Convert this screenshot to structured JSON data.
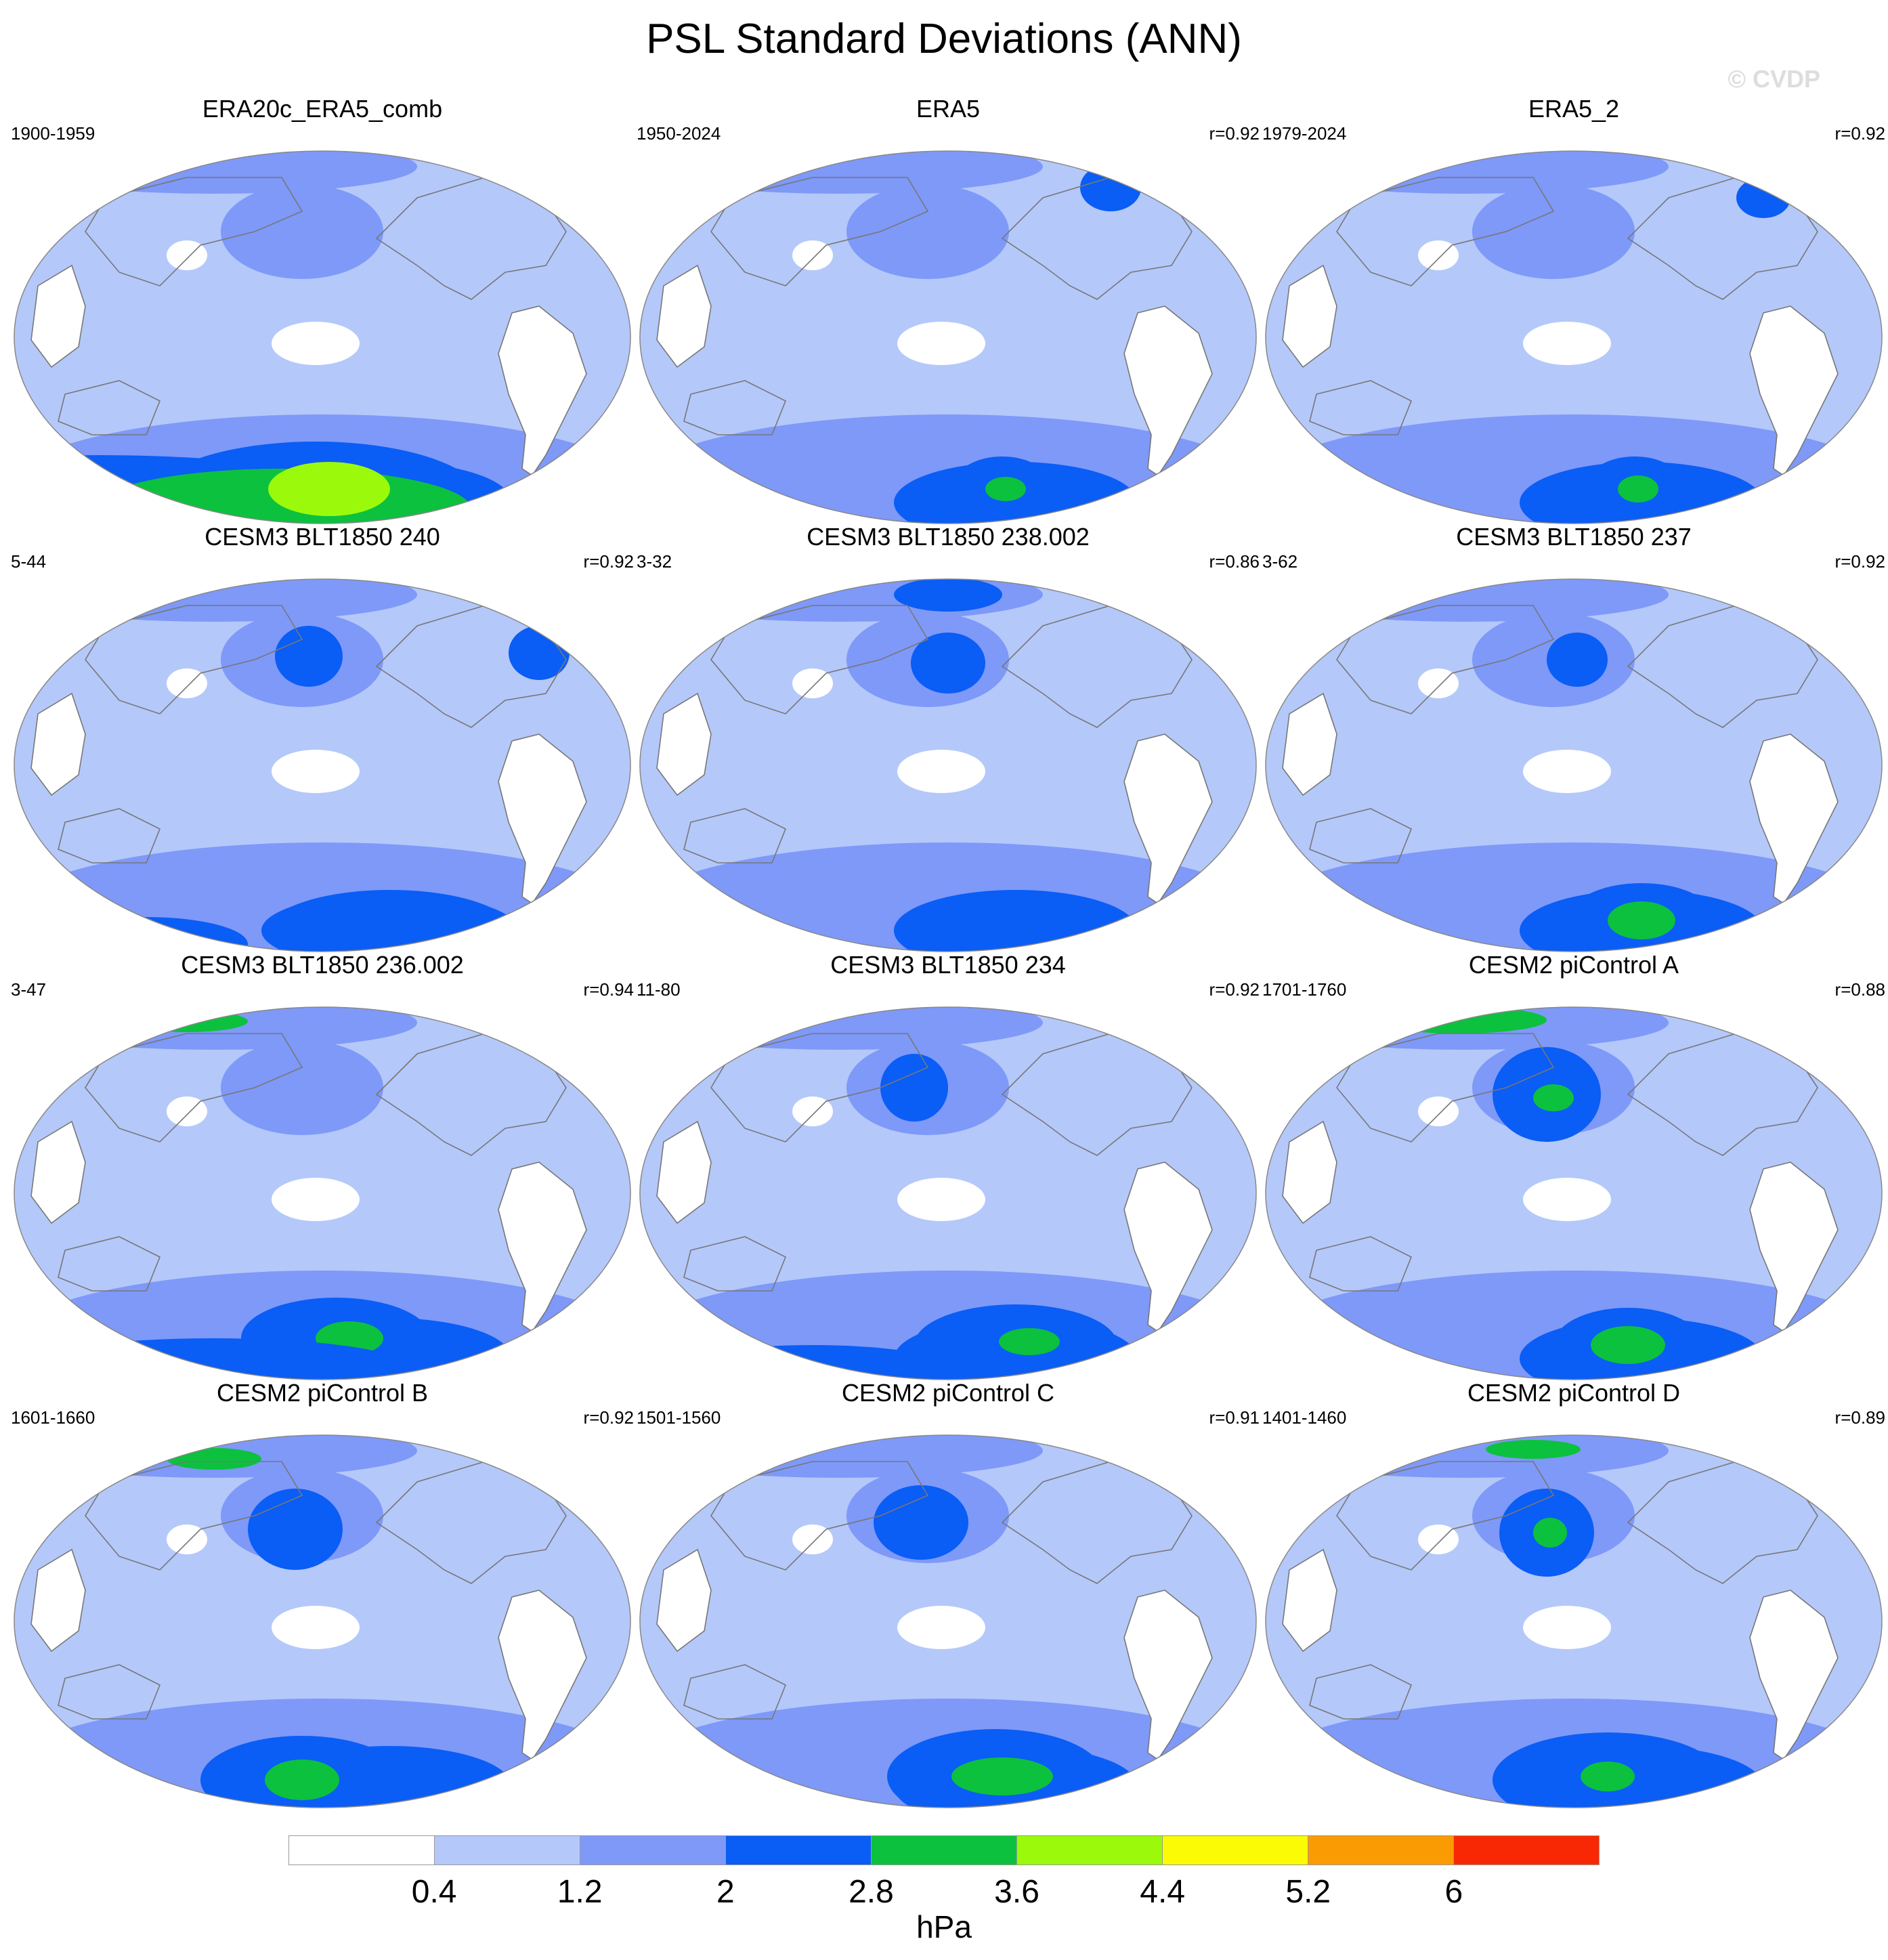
{
  "title": "PSL Standard Deviations (ANN)",
  "watermark": "© CVDP",
  "colors": {
    "levels": [
      "#ffffff",
      "#b4c8fa",
      "#7e99f8",
      "#0a5df5",
      "#0cc13e",
      "#9bfa0b",
      "#fbfb06",
      "#fa9b04",
      "#f92804"
    ],
    "coast": "#777777",
    "border": "#888888"
  },
  "panels": [
    {
      "title": "ERA20c_ERA5_comb",
      "years": "1900-1959",
      "r": ""
    },
    {
      "title": "ERA5",
      "years": "1950-2024",
      "r": "r=0.92"
    },
    {
      "title": "ERA5_2",
      "years": "1979-2024",
      "r": "r=0.92"
    },
    {
      "title": "CESM3 BLT1850 240",
      "years": "5-44",
      "r": "r=0.92"
    },
    {
      "title": "CESM3 BLT1850 238.002",
      "years": "3-32",
      "r": "r=0.86"
    },
    {
      "title": "CESM3 BLT1850 237",
      "years": "3-62",
      "r": "r=0.92"
    },
    {
      "title": "CESM3 BLT1850 236.002",
      "years": "3-47",
      "r": "r=0.94"
    },
    {
      "title": "CESM3 BLT1850 234",
      "years": "11-80",
      "r": "r=0.92"
    },
    {
      "title": "CESM2 piControl A",
      "years": "1701-1760",
      "r": "r=0.88"
    },
    {
      "title": "CESM2 piControl B",
      "years": "1601-1660",
      "r": "r=0.92"
    },
    {
      "title": "CESM2 piControl C",
      "years": "1501-1560",
      "r": "r=0.91"
    },
    {
      "title": "CESM2 piControl D",
      "years": "1401-1460",
      "r": "r=0.89"
    }
  ],
  "colorbar": {
    "labels": [
      "0.4",
      "1.2",
      "2",
      "2.8",
      "3.6",
      "4.4",
      "5.2",
      "6"
    ],
    "unit": "hPa"
  }
}
